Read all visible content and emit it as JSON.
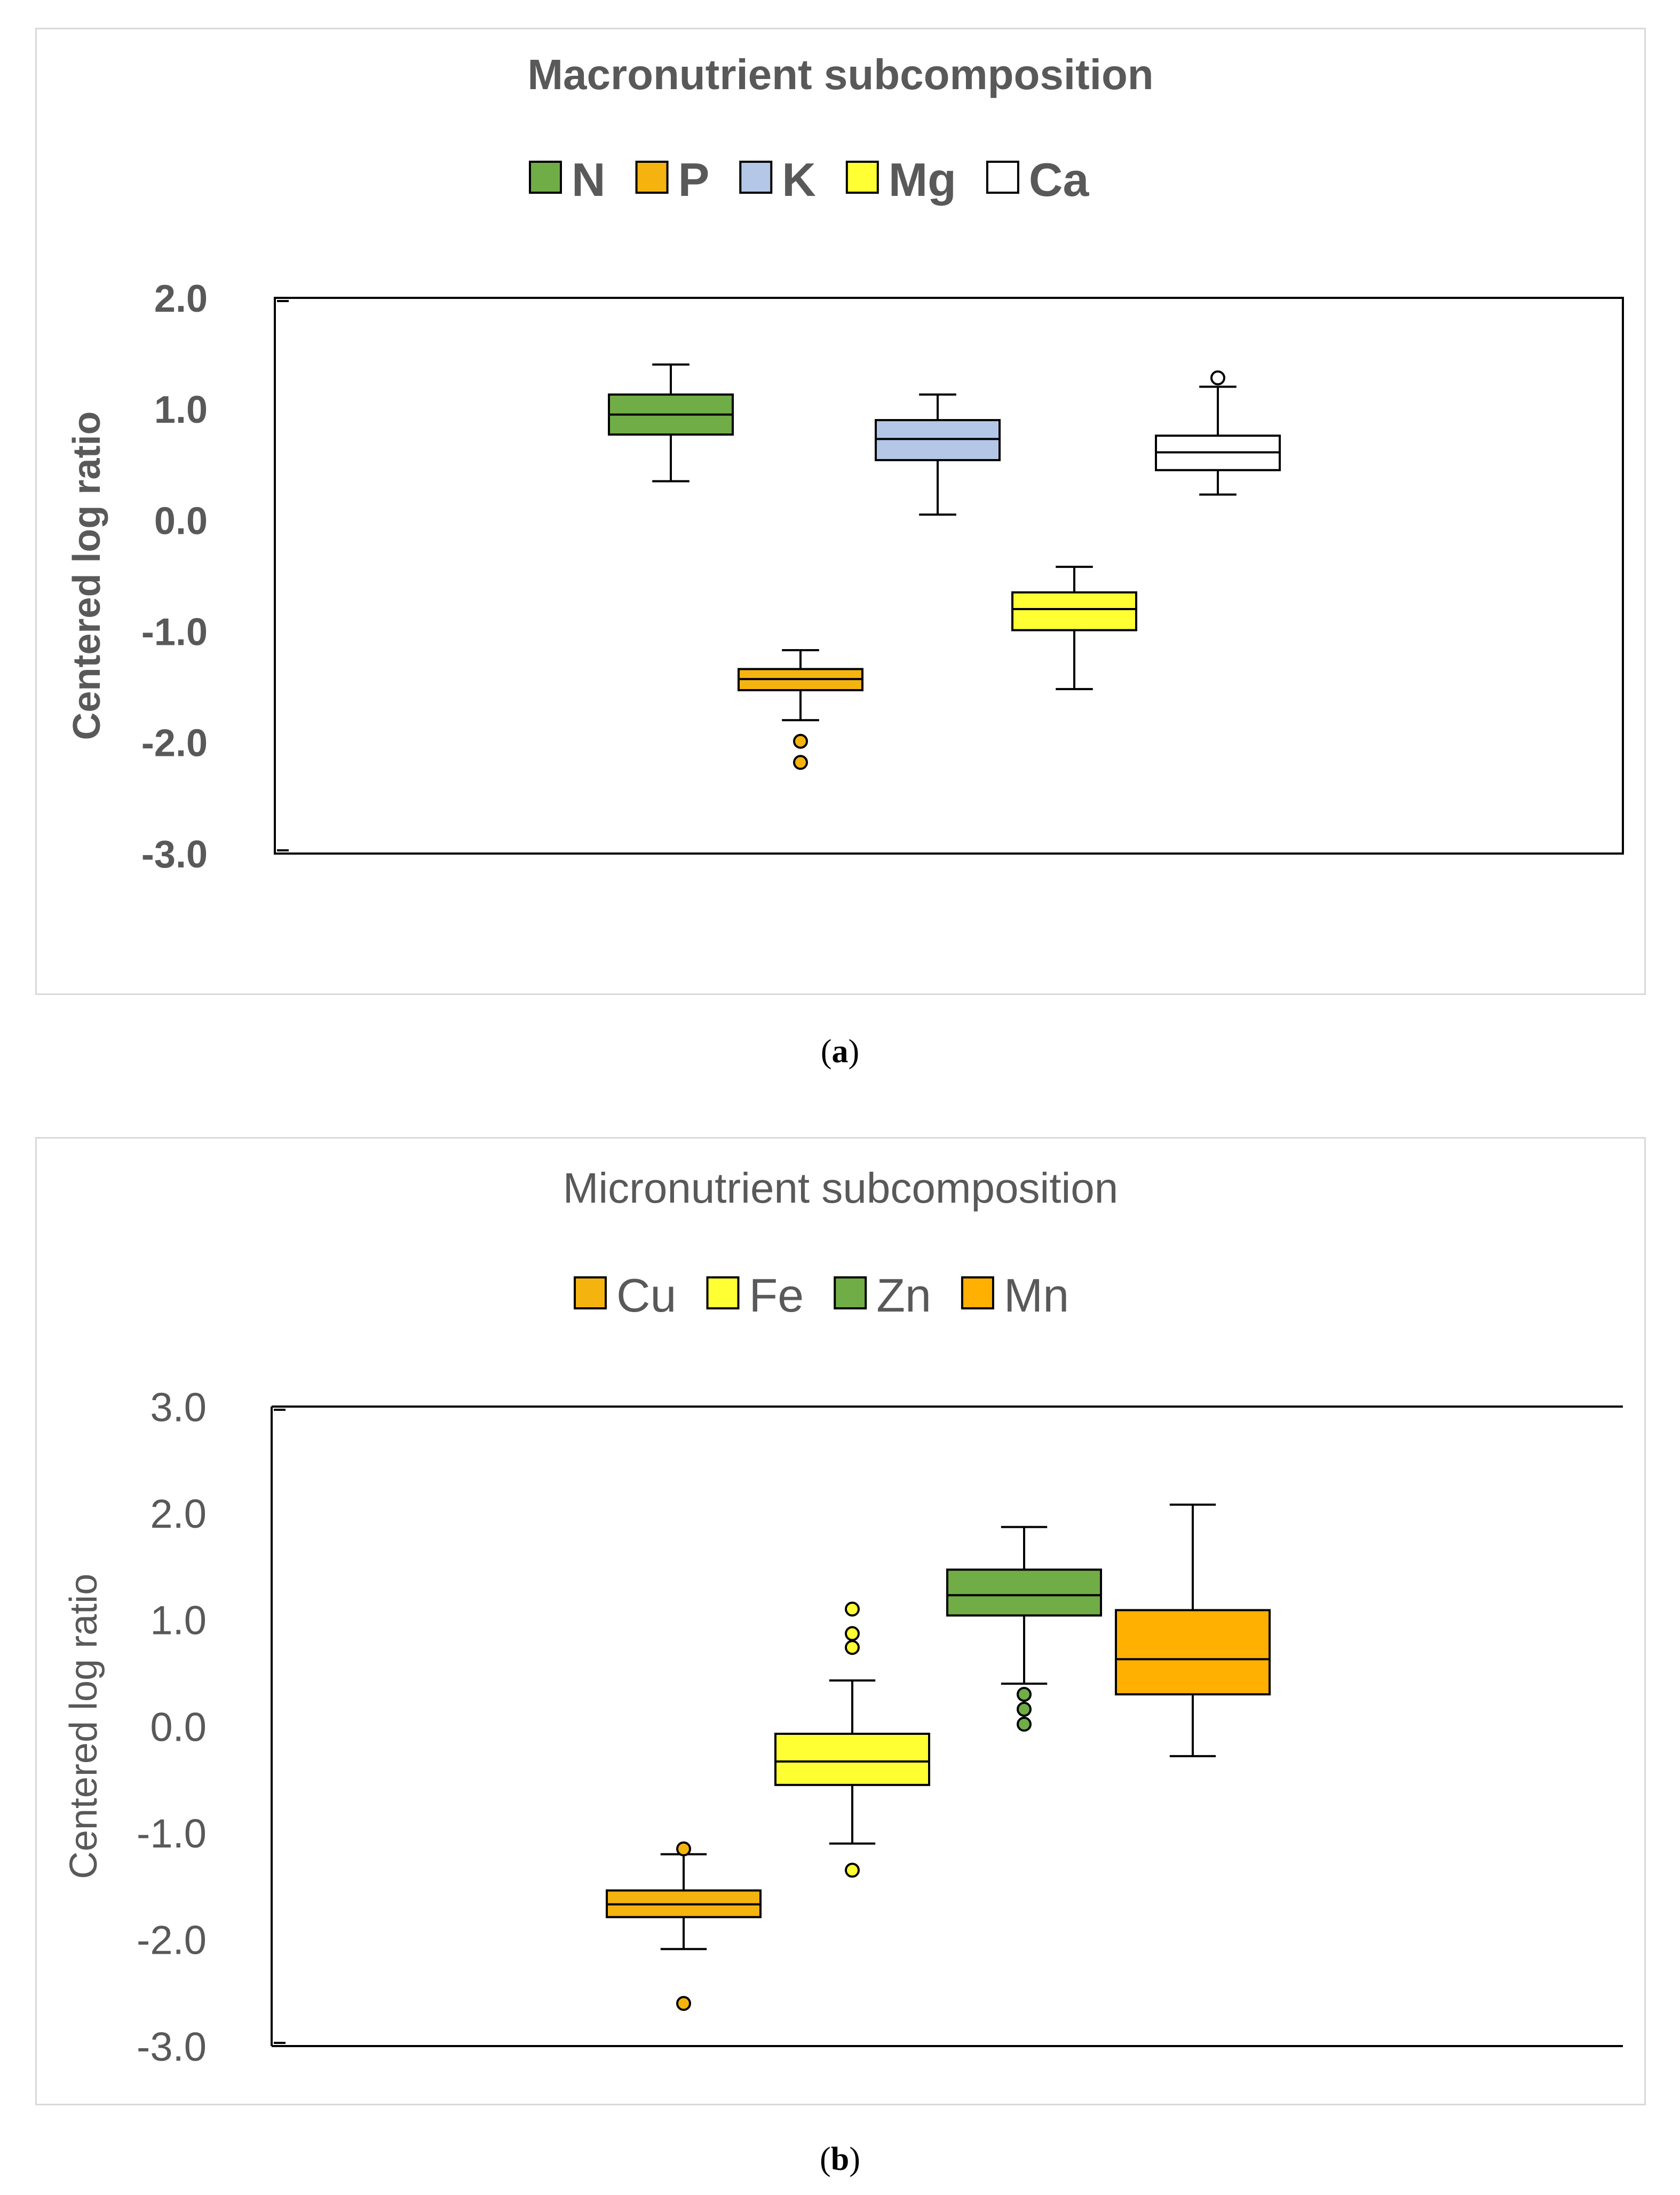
{
  "captions": {
    "a": "a",
    "b": "b"
  },
  "chart_data": [
    {
      "type": "box",
      "title": "Macronutrient subcomposition",
      "ylabel": "Centered log ratio",
      "xlabel": "",
      "ylim": [
        -3.0,
        2.0
      ],
      "yticks": [
        "2.0",
        "1.0",
        "0.0",
        "-1.0",
        "-2.0",
        "-3.0"
      ],
      "ytick_values": [
        2,
        1,
        0,
        -1,
        -2,
        -3
      ],
      "legend_position": "top-center",
      "series": [
        {
          "name": "N",
          "color": "#70ad47",
          "whisker_low": 0.35,
          "q1": 0.77,
          "median": 0.95,
          "q3": 1.13,
          "whisker_high": 1.4,
          "outliers": []
        },
        {
          "name": "P",
          "color": "#f4b30f",
          "whisker_low": -1.8,
          "q1": -1.53,
          "median": -1.43,
          "q3": -1.34,
          "whisker_high": -1.17,
          "outliers": [
            -1.99,
            -2.18
          ]
        },
        {
          "name": "K",
          "color": "#b4c7e7",
          "whisker_low": 0.05,
          "q1": 0.54,
          "median": 0.73,
          "q3": 0.9,
          "whisker_high": 1.13,
          "outliers": []
        },
        {
          "name": "Mg",
          "color": "#ffff33",
          "whisker_low": -1.52,
          "q1": -0.99,
          "median": -0.8,
          "q3": -0.65,
          "whisker_high": -0.42,
          "outliers": []
        },
        {
          "name": "Ca",
          "color": "#ffffff",
          "whisker_low": 0.23,
          "q1": 0.45,
          "median": 0.61,
          "q3": 0.76,
          "whisker_high": 1.2,
          "outliers": [
            1.28
          ]
        }
      ]
    },
    {
      "type": "box",
      "title": "Micronutrient subcomposition",
      "ylabel": "Centered log ratio",
      "xlabel": "",
      "ylim": [
        -3.0,
        3.0
      ],
      "yticks": [
        "3.0",
        "2.0",
        "1.0",
        "0.0",
        "-1.0",
        "-2.0",
        "-3.0"
      ],
      "ytick_values": [
        3,
        2,
        1,
        0,
        -1,
        -2,
        -3
      ],
      "legend_position": "top-center",
      "series": [
        {
          "name": "Cu",
          "color": "#f4b30f",
          "whisker_low": -2.09,
          "q1": -1.79,
          "median": -1.67,
          "q3": -1.54,
          "whisker_high": -1.2,
          "outliers": [
            -1.15,
            -2.6
          ]
        },
        {
          "name": "Fe",
          "color": "#ffff33",
          "whisker_low": -1.1,
          "q1": -0.55,
          "median": -0.33,
          "q3": -0.07,
          "whisker_high": 0.43,
          "outliers": [
            1.1,
            0.87,
            0.74,
            -1.35
          ]
        },
        {
          "name": "Zn",
          "color": "#70ad47",
          "whisker_low": 0.4,
          "q1": 1.04,
          "median": 1.23,
          "q3": 1.47,
          "whisker_high": 1.87,
          "outliers": [
            0.3,
            0.16,
            0.02
          ]
        },
        {
          "name": "Mn",
          "color": "#ffb000",
          "whisker_low": -0.28,
          "q1": 0.3,
          "median": 0.63,
          "q3": 1.09,
          "whisker_high": 2.08,
          "outliers": []
        }
      ]
    }
  ]
}
